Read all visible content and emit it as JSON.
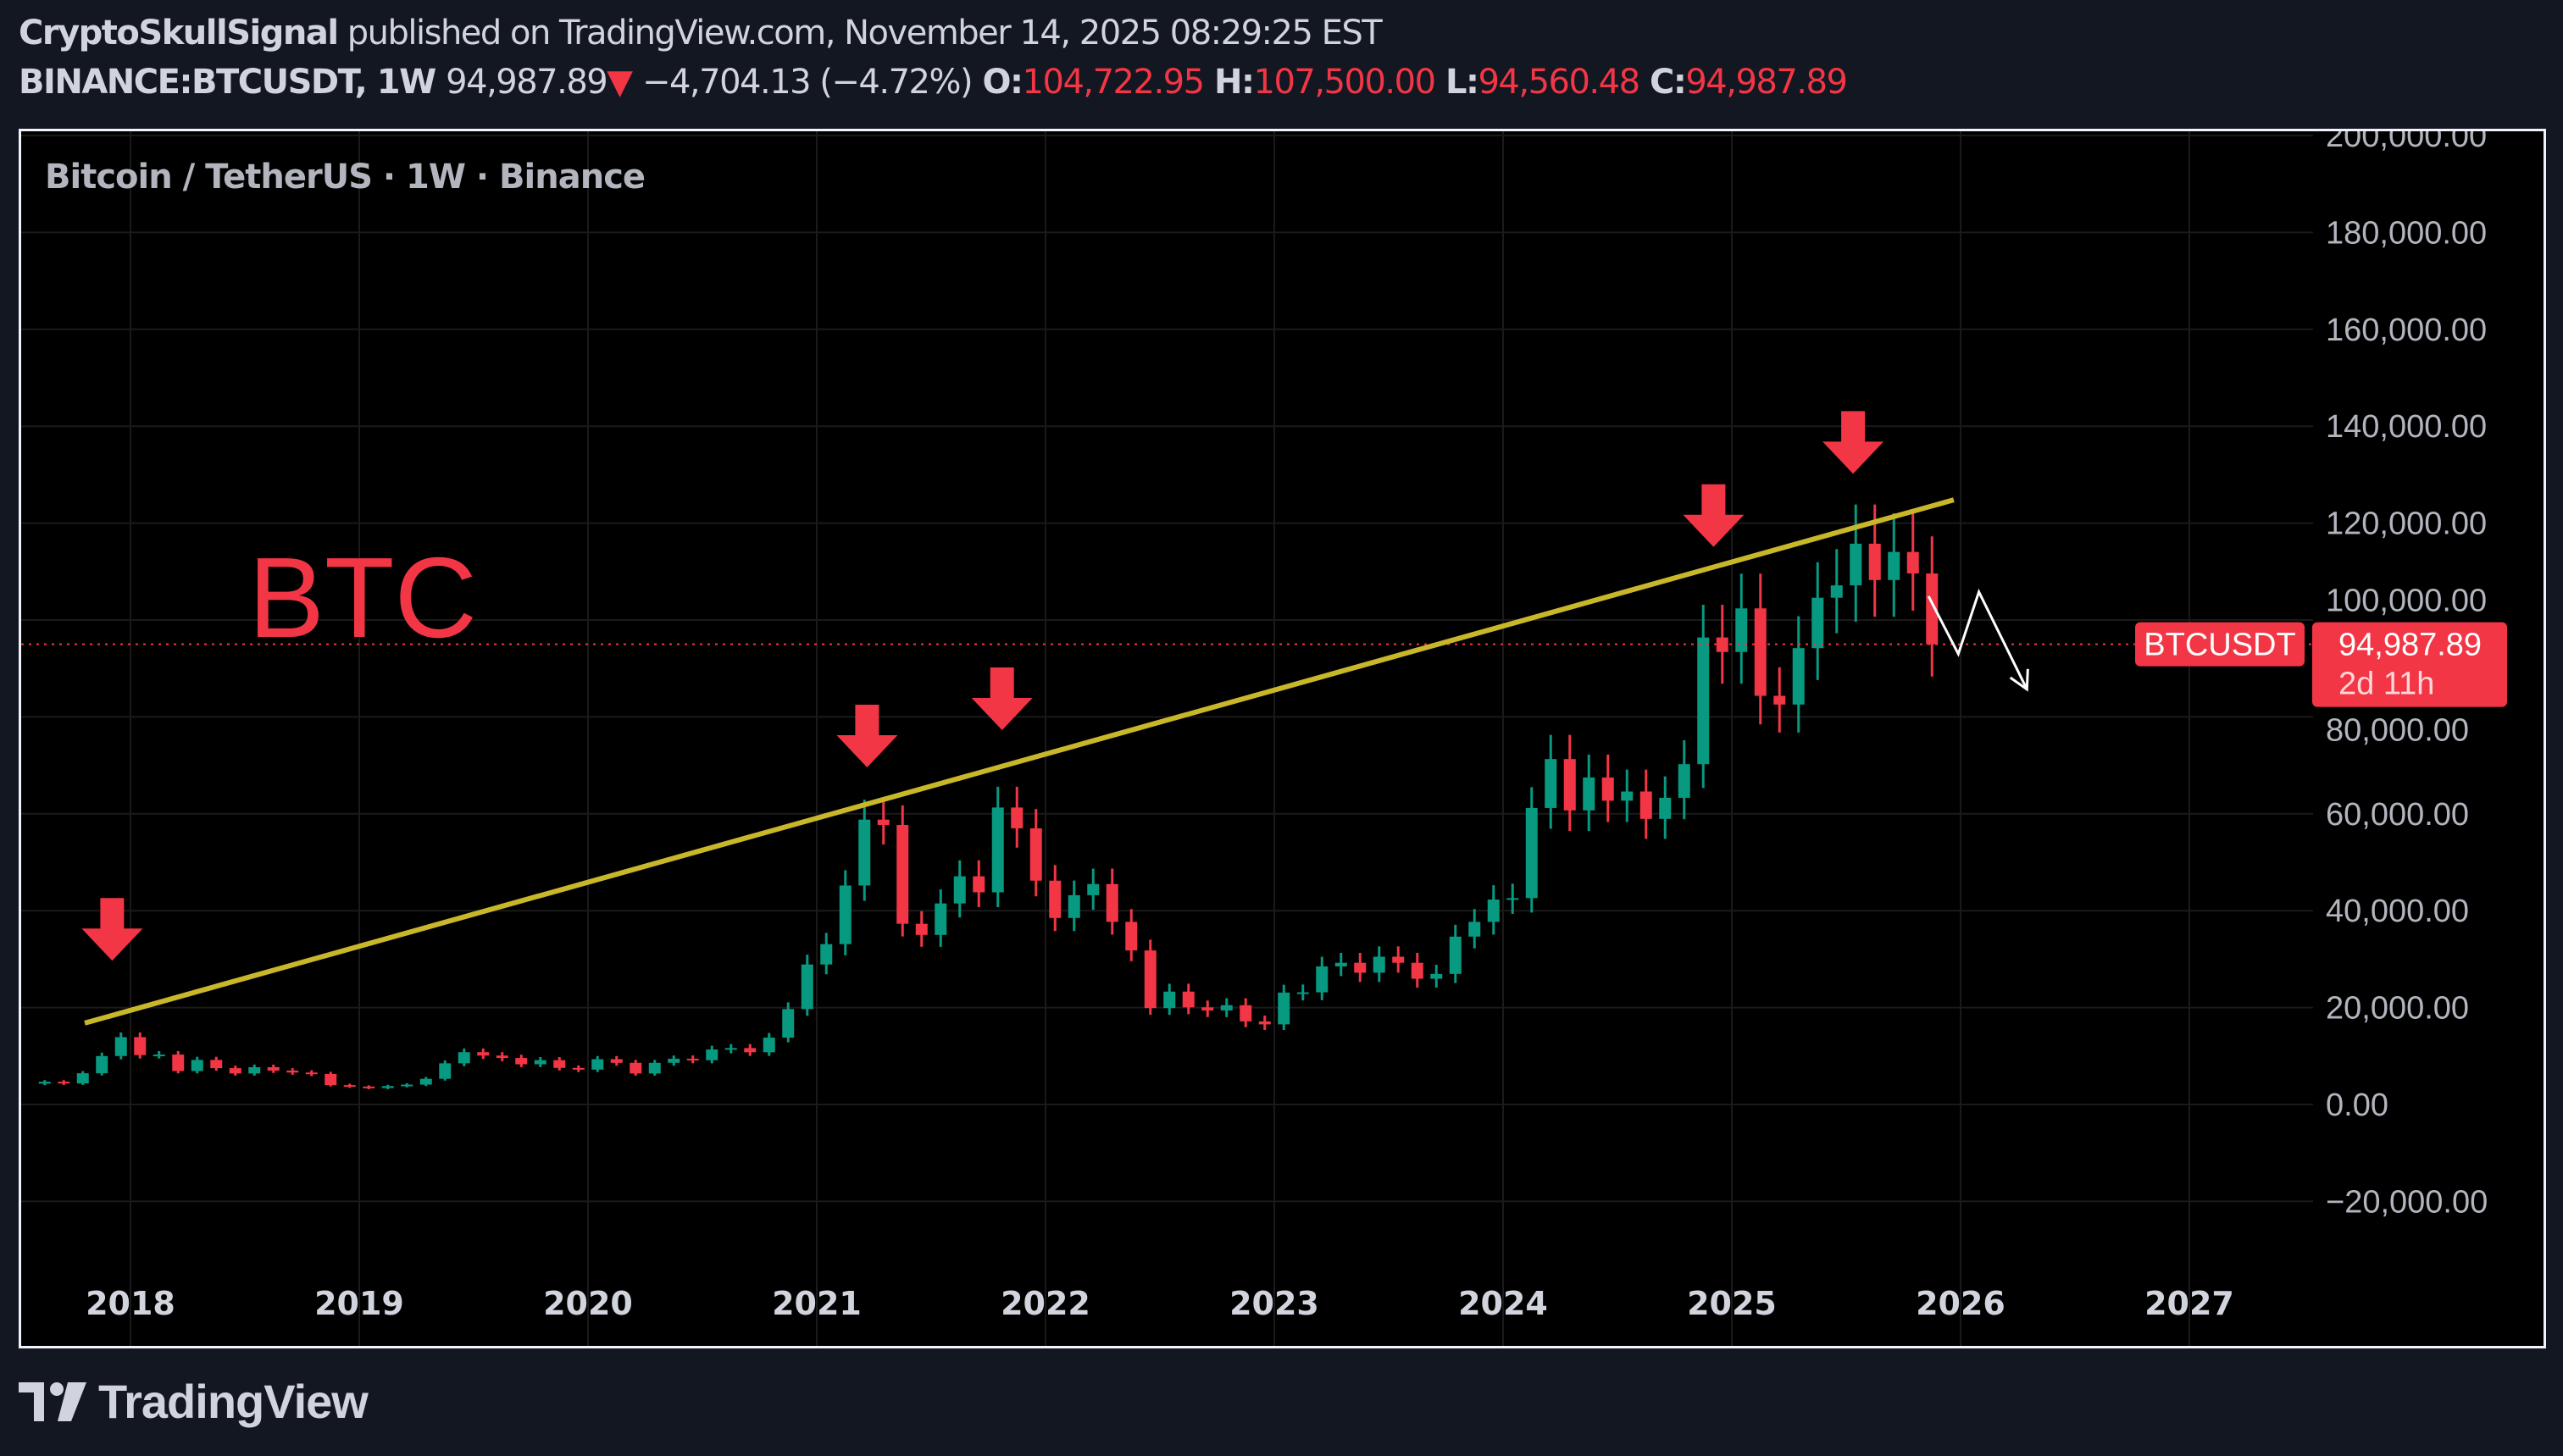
{
  "header": {
    "author": "CryptoSkullSignal",
    "published": "published on TradingView.com, November 14, 2025 08:29:25 EST",
    "symbol": "BINANCE:BTCUSDT, 1W",
    "last": "94,987.89",
    "change_arrow": "▼",
    "change": "−4,704.13 (−4.72%)",
    "o_label": "O:",
    "o": "104,722.95",
    "h_label": "H:",
    "h": "107,500.00",
    "l_label": "L:",
    "l": "94,560.48",
    "c_label": "C:",
    "c": "94,987.89"
  },
  "footer": {
    "logo_text": "TradingView"
  },
  "colors": {
    "up": "#089981",
    "down": "#f23645",
    "trendline": "#c9b72a",
    "annotation": "#f23645",
    "projection": "#ffffff",
    "background": "#000000",
    "page": "#131722"
  },
  "chart_data": {
    "type": "candlestick",
    "title": "Bitcoin / TetherUS · 1W · Binance",
    "annotation_text": "BTC",
    "ylim": [
      -30000,
      205000
    ],
    "xlim": [
      "2017-07",
      "2027-06"
    ],
    "y_ticks": [
      "200,000.00",
      "180,000.00",
      "160,000.00",
      "140,000.00",
      "120,000.00",
      "100,000.00",
      "80,000.00",
      "60,000.00",
      "40,000.00",
      "20,000.00",
      "0.00",
      "−20,000.00"
    ],
    "y_tick_values": [
      200000,
      180000,
      160000,
      140000,
      120000,
      100000,
      80000,
      60000,
      40000,
      20000,
      0,
      -20000
    ],
    "x_ticks": [
      "2018",
      "2019",
      "2020",
      "2021",
      "2022",
      "2023",
      "2024",
      "2025",
      "2026",
      "2027"
    ],
    "grid": true,
    "current_price": {
      "symbol_label": "BTCUSDT",
      "price_label": "94,987.89",
      "countdown": "2d 11h",
      "value": 94987.89
    },
    "series_start": "2017-08",
    "monthly_close": [
      4700,
      4340,
      6450,
      10000,
      13900,
      10200,
      10300,
      6900,
      9200,
      7500,
      6400,
      7700,
      7000,
      6600,
      6300,
      4000,
      3700,
      3400,
      3800,
      4100,
      5300,
      8500,
      10800,
      10100,
      9600,
      8300,
      9150,
      7550,
      7200,
      9350,
      8600,
      6400,
      8600,
      9450,
      9140,
      11350,
      11650,
      10780,
      13800,
      19700,
      28900,
      33100,
      45200,
      58800,
      57700,
      37300,
      35000,
      41500,
      47100,
      43800,
      61300,
      57000,
      46200,
      38500,
      43200,
      45500,
      37700,
      31800,
      19900,
      23300,
      20050,
      19400,
      20500,
      17150,
      16540,
      23100,
      23150,
      28500,
      29250,
      27200,
      30500,
      29250,
      25950,
      26950,
      34650,
      37700,
      42300,
      42600,
      61200,
      71300,
      60700,
      67500,
      62700,
      64600,
      58950,
      63300,
      70250,
      96400,
      93400,
      102400,
      84350,
      82550,
      94200,
      104600,
      107150,
      115750,
      108250,
      114050,
      109600,
      94988
    ],
    "trendline": [
      {
        "date": 2017.8,
        "price": 16800
      },
      {
        "date": 2025.97,
        "price": 124800
      }
    ],
    "arrows": [
      {
        "date": 2017.92,
        "price": 29500
      },
      {
        "date": 2021.22,
        "price": 69400
      },
      {
        "date": 2021.81,
        "price": 77100
      },
      {
        "date": 2024.92,
        "price": 114900
      },
      {
        "date": 2025.53,
        "price": 130000
      }
    ],
    "projection": [
      {
        "date": 2025.86,
        "price": 104900
      },
      {
        "date": 2025.99,
        "price": 93000
      },
      {
        "date": 2026.08,
        "price": 105800
      },
      {
        "date": 2026.29,
        "price": 85700
      }
    ]
  }
}
